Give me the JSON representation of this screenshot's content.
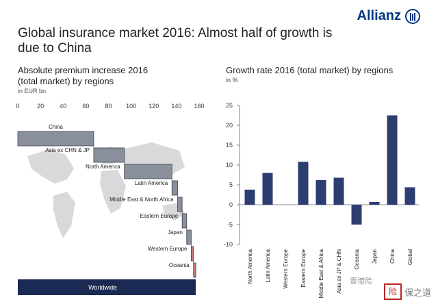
{
  "brand": {
    "name": "Allianz",
    "icon": "allianz-logo-icon"
  },
  "title": "Global insurance market 2016: Almost half of growth is due to China",
  "watermark": {
    "wechat": "壹港险",
    "site": "保之道",
    "site_icon_text": "险"
  },
  "colors": {
    "bar": "#2c3e6f",
    "waterfall": "#8a8f9c",
    "waterfall_small": "#c97a7a",
    "worldwide": "#1a2a52",
    "map": "#cfcfd2"
  },
  "chart_data": [
    {
      "type": "bar",
      "orientation": "horizontal-waterfall",
      "title": "Absolute premium increase 2016\n(total market) by regions",
      "unit": "in EUR bn",
      "xlim": [
        0,
        160
      ],
      "xticks": [
        0,
        20,
        40,
        60,
        80,
        100,
        120,
        140,
        160
      ],
      "categories": [
        "China",
        "Asia ex CHN & JP",
        "North America",
        "Latin America",
        "Middle East & North Africa",
        "Eastern Europe",
        "Japan",
        "Western Europe",
        "Oceania",
        "Worldwide"
      ],
      "values": [
        67,
        27,
        42,
        5,
        4,
        4,
        4,
        2,
        2,
        157
      ],
      "total_category": "Worldwide"
    },
    {
      "type": "bar",
      "title": "Growth rate 2016 (total market) by regions",
      "unit": "in %",
      "ylim": [
        -10,
        25
      ],
      "yticks": [
        -10,
        -5,
        0,
        5,
        10,
        15,
        20,
        25
      ],
      "categories": [
        "North America",
        "Latin America",
        "Western Europe",
        "Eastern Europe",
        "Middle East & Africa",
        "Asia ex JP & CHN",
        "Oceania",
        "Japan",
        "China",
        "Global"
      ],
      "values": [
        3.8,
        8.0,
        0.0,
        10.8,
        6.2,
        6.8,
        -5.0,
        0.7,
        22.5,
        4.4
      ]
    }
  ]
}
